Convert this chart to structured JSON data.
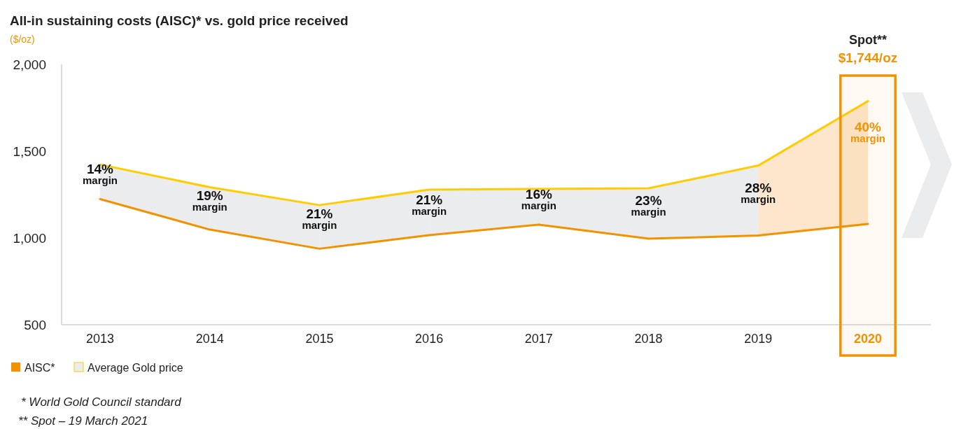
{
  "chart_data": {
    "type": "line",
    "title": "All-in sustaining costs (AISC)* vs. gold price received",
    "ylabel": "($/oz)",
    "categories": [
      "2013",
      "2014",
      "2015",
      "2016",
      "2017",
      "2018",
      "2019",
      "2020"
    ],
    "series": [
      {
        "name": "AISC*",
        "color": "#f39200",
        "values": [
          1224,
          1048,
          938,
          1016,
          1077,
          996,
          1014,
          1081
        ]
      },
      {
        "name": "Average Gold price",
        "color": "#ffcc00",
        "values": [
          1423,
          1292,
          1189,
          1278,
          1282,
          1286,
          1417,
          1788
        ]
      }
    ],
    "ylim": [
      500,
      2000
    ],
    "yticks": [
      {
        "value": 500,
        "label": "500"
      },
      {
        "value": 1000,
        "label": "1,000"
      },
      {
        "value": 1500,
        "label": "1,500"
      },
      {
        "value": 2000,
        "label": "2,000"
      }
    ],
    "grid": false,
    "legend": "bottom left",
    "marker": "none",
    "line_style": "solid",
    "bands": [
      {
        "axis": "x",
        "from": "2020",
        "to": "2020",
        "label": "Spot** $1,744/oz",
        "color": "#f39200"
      }
    ],
    "annotations": [
      "14% margin",
      "19% margin",
      "21% margin",
      "21% margin",
      "16% margin",
      "23% margin",
      "28% margin",
      "40% margin",
      "* World Gold Council standard",
      "** Spot – 19 March 2021"
    ]
  }
}
